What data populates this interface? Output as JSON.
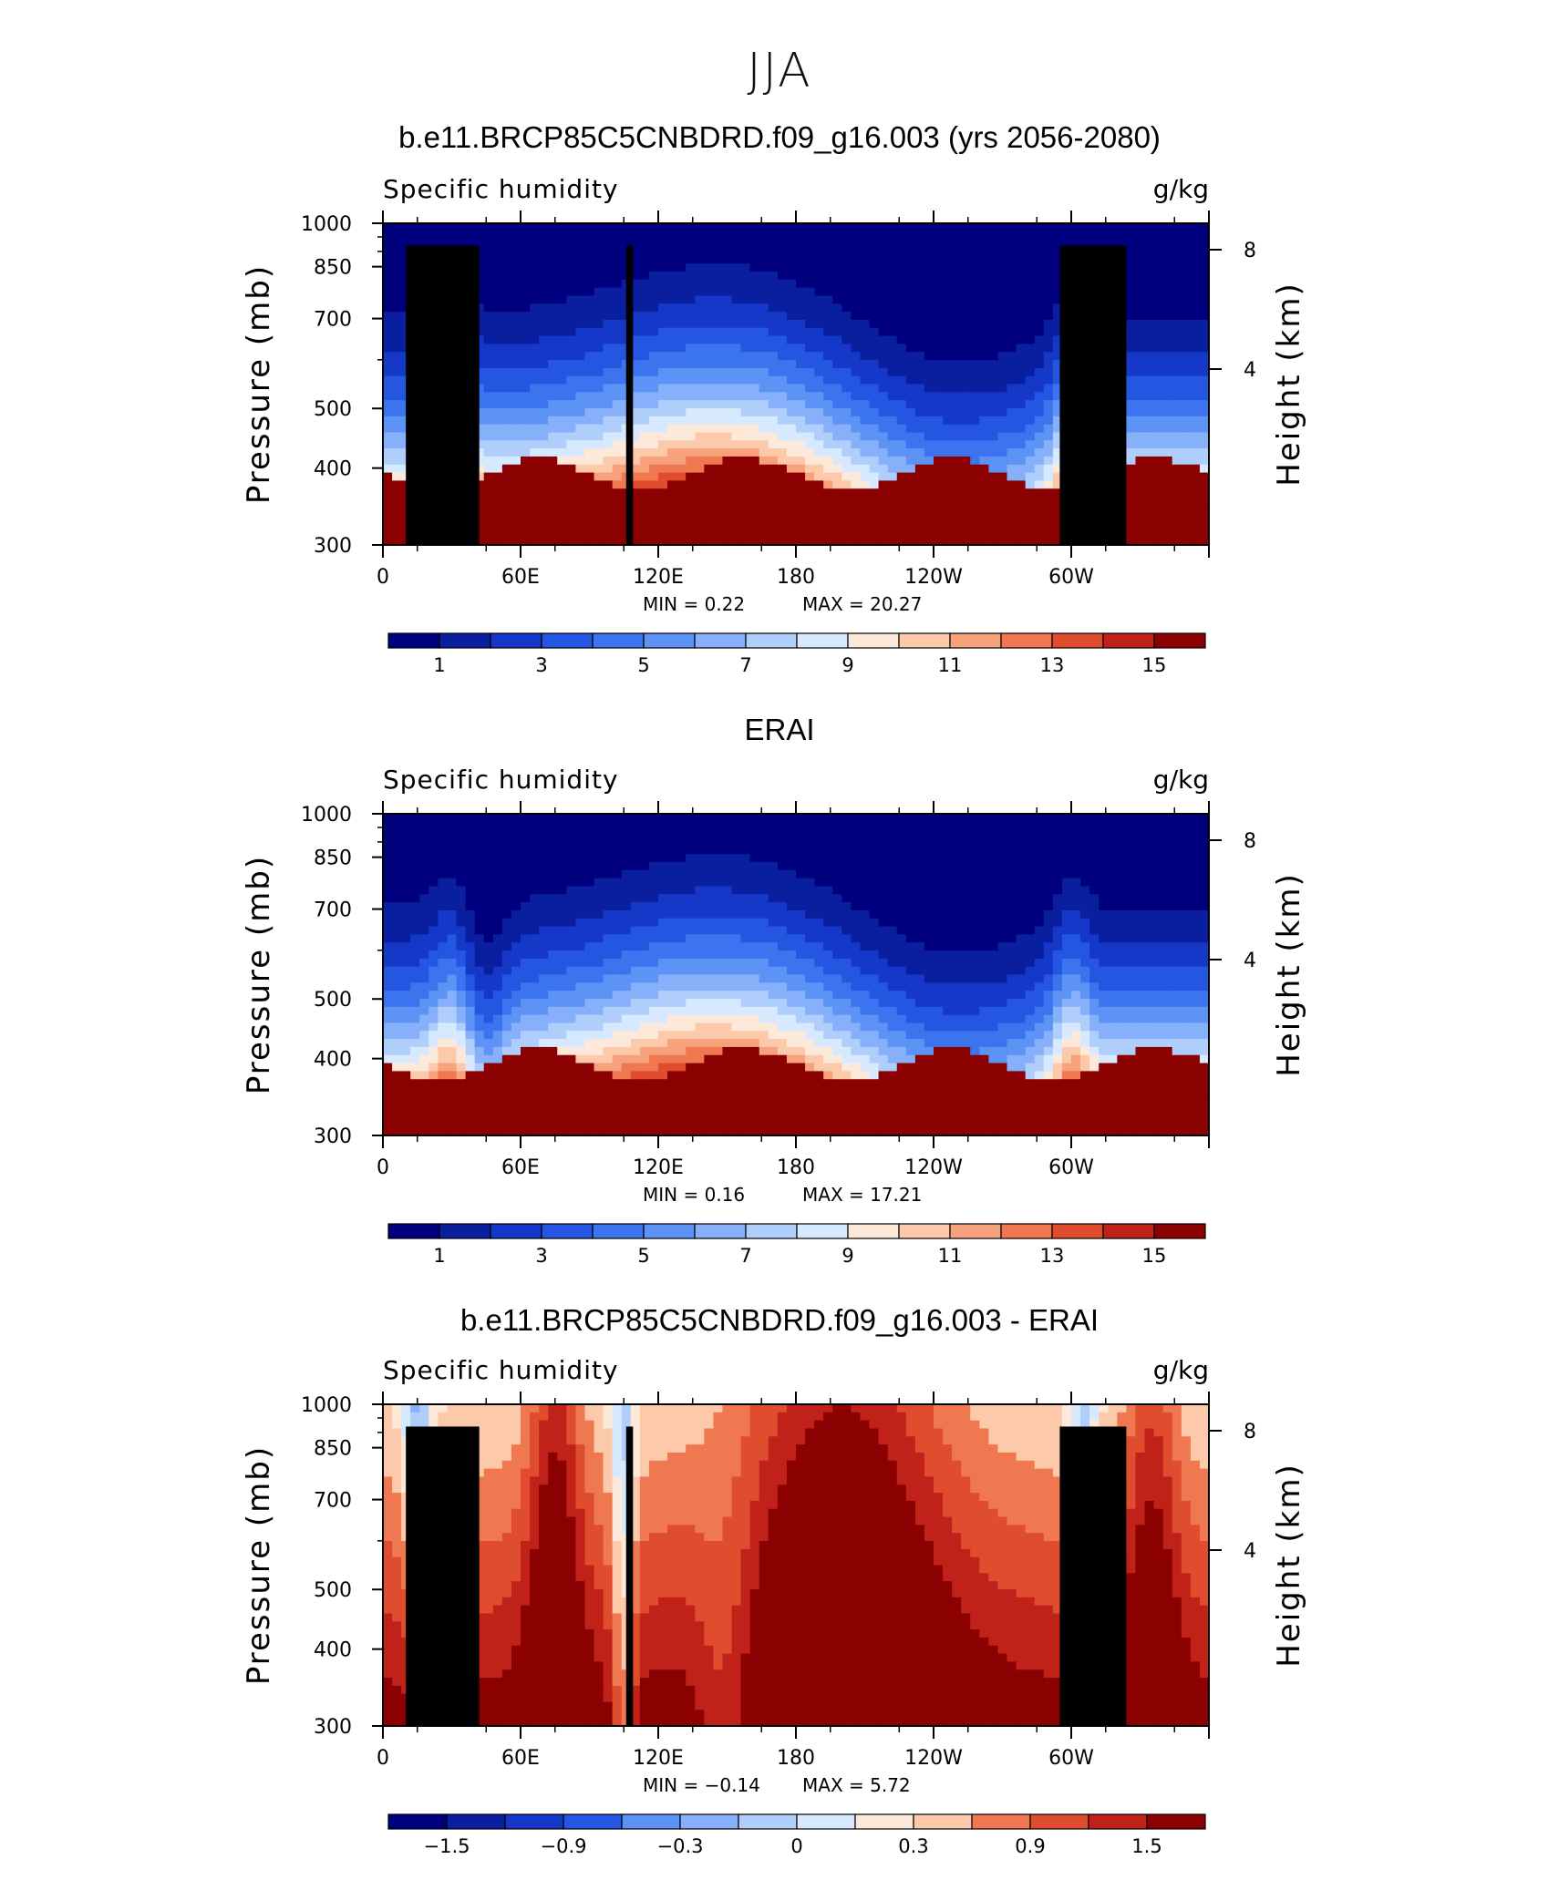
{
  "figure": {
    "title": "JJA"
  },
  "chart_data": [
    {
      "type": "heatmap",
      "title": "b.e11.BRCP85C5CNBDRD.f09_g16.003 (yrs 2056-2080)",
      "left_label": "Specific humidity",
      "right_label": "g/kg",
      "ylabel": "Pressure (mb)",
      "ylabel_right": "Height (km)",
      "x_ticks": [
        "0",
        "60E",
        "120E",
        "180",
        "120W",
        "60W"
      ],
      "y_ticks": [
        "300",
        "400",
        "500",
        "700",
        "850",
        "1000"
      ],
      "y_ticks_right": [
        "8",
        "4"
      ],
      "ylim": [
        1000,
        300
      ],
      "y_scale": "log",
      "min_text": "MIN =    0.22",
      "max_text": "MAX =   20.27",
      "min": 0.22,
      "max": 20.27,
      "colorbar_labels": [
        "1",
        "3",
        "5",
        "7",
        "9",
        "11",
        "13",
        "15"
      ],
      "colorbar_levels": [
        1,
        2,
        3,
        4,
        5,
        6,
        7,
        8,
        9,
        10,
        11,
        12,
        13,
        14,
        15
      ],
      "field": "total"
    },
    {
      "type": "heatmap",
      "title": "ERAI",
      "left_label": "Specific humidity",
      "right_label": "g/kg",
      "ylabel": "Pressure (mb)",
      "ylabel_right": "Height (km)",
      "x_ticks": [
        "0",
        "60E",
        "120E",
        "180",
        "120W",
        "60W"
      ],
      "y_ticks": [
        "300",
        "400",
        "500",
        "700",
        "850",
        "1000"
      ],
      "y_ticks_right": [
        "8",
        "4"
      ],
      "ylim": [
        1000,
        300
      ],
      "y_scale": "log",
      "min_text": "MIN =    0.16",
      "max_text": "MAX =   17.21",
      "min": 0.16,
      "max": 17.21,
      "colorbar_labels": [
        "1",
        "3",
        "5",
        "7",
        "9",
        "11",
        "13",
        "15"
      ],
      "colorbar_levels": [
        1,
        2,
        3,
        4,
        5,
        6,
        7,
        8,
        9,
        10,
        11,
        12,
        13,
        14,
        15
      ],
      "field": "total"
    },
    {
      "type": "heatmap",
      "title": "b.e11.BRCP85C5CNBDRD.f09_g16.003 - ERAI",
      "left_label": "Specific humidity",
      "right_label": "g/kg",
      "ylabel": "Pressure (mb)",
      "ylabel_right": "Height (km)",
      "x_ticks": [
        "0",
        "60E",
        "120E",
        "180",
        "120W",
        "60W"
      ],
      "y_ticks": [
        "300",
        "400",
        "500",
        "700",
        "850",
        "1000"
      ],
      "y_ticks_right": [
        "8",
        "4"
      ],
      "ylim": [
        1000,
        300
      ],
      "y_scale": "log",
      "min_text": "MIN =   −0.14",
      "max_text": "MAX =    5.72",
      "min": -0.14,
      "max": 5.72,
      "colorbar_labels": [
        "−1.5",
        "−0.9",
        "−0.3",
        "0",
        "0.3",
        "0.9",
        "1.5"
      ],
      "colorbar_levels": [
        -1.8,
        -1.5,
        -1.2,
        -0.9,
        -0.6,
        -0.3,
        0,
        0.3,
        0.6,
        0.9,
        1.2,
        1.5,
        1.8
      ],
      "field": "difference"
    }
  ],
  "colors": {
    "palette": [
      "#00007f",
      "#0a1ea0",
      "#1538c8",
      "#2556e2",
      "#3b74ee",
      "#5d93f5",
      "#86b0fa",
      "#b0cefc",
      "#d7e9fe",
      "#fde9d9",
      "#fcc9aa",
      "#f7a27c",
      "#f07850",
      "#e04c2e",
      "#c0221a",
      "#8b0000"
    ],
    "terrain": "#000000"
  }
}
